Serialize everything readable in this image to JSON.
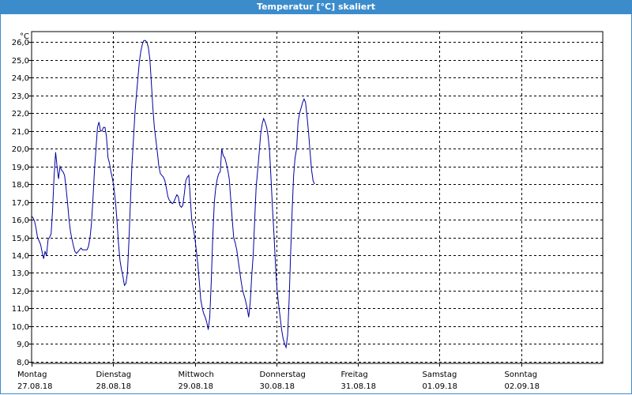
{
  "window": {
    "title": "Temperatur [°C] skaliert"
  },
  "chart_data": {
    "type": "line",
    "title": "Temperatur [°C] skaliert",
    "ylabel": "°C",
    "ylim": [
      7.9,
      26.6
    ],
    "yticks": [
      8.0,
      9.0,
      10.0,
      11.0,
      12.0,
      13.0,
      14.0,
      15.0,
      16.0,
      17.0,
      18.0,
      19.0,
      20.0,
      21.0,
      22.0,
      23.0,
      24.0,
      25.0,
      26.0
    ],
    "ytick_labels": [
      "8,0",
      "9,0",
      "10,0",
      "11,0",
      "12,0",
      "13,0",
      "14,0",
      "15,0",
      "16,0",
      "17,0",
      "18,0",
      "19,0",
      "20,0",
      "21,0",
      "22,0",
      "23,0",
      "24,0",
      "25,0",
      "26,0"
    ],
    "xlim": [
      0,
      7
    ],
    "days": [
      {
        "weekday": "Montag",
        "date": "27.08.18"
      },
      {
        "weekday": "Dienstag",
        "date": "28.08.18"
      },
      {
        "weekday": "Mittwoch",
        "date": "29.08.18"
      },
      {
        "weekday": "Donnerstag",
        "date": "30.08.18"
      },
      {
        "weekday": "Freitag",
        "date": "31.08.18"
      },
      {
        "weekday": "Samstag",
        "date": "01.09.18"
      },
      {
        "weekday": "Sonntag",
        "date": "02.09.18"
      }
    ],
    "grid": true,
    "series": [
      {
        "color": "#0000a0",
        "points": [
          [
            0.0,
            16.2
          ],
          [
            0.018,
            16.1
          ],
          [
            0.037,
            15.9
          ],
          [
            0.055,
            15.5
          ],
          [
            0.073,
            15.0
          ],
          [
            0.092,
            14.8
          ],
          [
            0.11,
            14.6
          ],
          [
            0.128,
            14.2
          ],
          [
            0.147,
            13.8
          ],
          [
            0.165,
            14.2
          ],
          [
            0.183,
            14.0
          ],
          [
            0.202,
            14.9
          ],
          [
            0.22,
            15.0
          ],
          [
            0.239,
            15.2
          ],
          [
            0.257,
            16.5
          ],
          [
            0.275,
            18.4
          ],
          [
            0.294,
            19.8
          ],
          [
            0.312,
            19.0
          ],
          [
            0.33,
            18.3
          ],
          [
            0.349,
            19.0
          ],
          [
            0.367,
            18.8
          ],
          [
            0.385,
            18.7
          ],
          [
            0.404,
            18.5
          ],
          [
            0.422,
            17.8
          ],
          [
            0.44,
            17.0
          ],
          [
            0.459,
            16.0
          ],
          [
            0.477,
            15.3
          ],
          [
            0.495,
            14.9
          ],
          [
            0.514,
            14.5
          ],
          [
            0.532,
            14.2
          ],
          [
            0.55,
            14.1
          ],
          [
            0.569,
            14.2
          ],
          [
            0.587,
            14.3
          ],
          [
            0.606,
            14.4
          ],
          [
            0.624,
            14.3
          ],
          [
            0.642,
            14.3
          ],
          [
            0.661,
            14.3
          ],
          [
            0.679,
            14.3
          ],
          [
            0.697,
            14.5
          ],
          [
            0.716,
            15.0
          ],
          [
            0.734,
            15.8
          ],
          [
            0.752,
            17.2
          ],
          [
            0.771,
            18.8
          ],
          [
            0.789,
            20.0
          ],
          [
            0.807,
            21.2
          ],
          [
            0.826,
            21.5
          ],
          [
            0.844,
            21.0
          ],
          [
            0.862,
            21.0
          ],
          [
            0.881,
            21.2
          ],
          [
            0.899,
            21.2
          ],
          [
            0.917,
            20.7
          ],
          [
            0.936,
            19.5
          ],
          [
            0.954,
            19.2
          ],
          [
            0.972,
            18.7
          ],
          [
            0.991,
            18.3
          ],
          [
            1.009,
            17.8
          ],
          [
            1.028,
            17.0
          ],
          [
            1.046,
            16.0
          ],
          [
            1.064,
            14.7
          ],
          [
            1.083,
            13.7
          ],
          [
            1.101,
            13.2
          ],
          [
            1.119,
            12.8
          ],
          [
            1.138,
            12.3
          ],
          [
            1.156,
            12.4
          ],
          [
            1.174,
            13.0
          ],
          [
            1.193,
            14.8
          ],
          [
            1.211,
            17.0
          ],
          [
            1.229,
            19.0
          ],
          [
            1.248,
            20.5
          ],
          [
            1.266,
            22.0
          ],
          [
            1.284,
            23.0
          ],
          [
            1.303,
            24.0
          ],
          [
            1.321,
            24.9
          ],
          [
            1.339,
            25.5
          ],
          [
            1.358,
            25.9
          ],
          [
            1.376,
            26.1
          ],
          [
            1.394,
            26.1
          ],
          [
            1.413,
            26.0
          ],
          [
            1.431,
            25.7
          ],
          [
            1.45,
            25.0
          ],
          [
            1.468,
            23.7
          ],
          [
            1.486,
            22.3
          ],
          [
            1.505,
            21.2
          ],
          [
            1.523,
            20.5
          ],
          [
            1.541,
            19.8
          ],
          [
            1.56,
            19.0
          ],
          [
            1.578,
            18.6
          ],
          [
            1.596,
            18.5
          ],
          [
            1.615,
            18.4
          ],
          [
            1.633,
            18.2
          ],
          [
            1.651,
            17.8
          ],
          [
            1.67,
            17.3
          ],
          [
            1.688,
            17.1
          ],
          [
            1.706,
            17.0
          ],
          [
            1.725,
            16.9
          ],
          [
            1.743,
            17.0
          ],
          [
            1.761,
            17.2
          ],
          [
            1.78,
            17.4
          ],
          [
            1.798,
            17.3
          ],
          [
            1.817,
            16.8
          ],
          [
            1.835,
            16.7
          ],
          [
            1.853,
            16.8
          ],
          [
            1.872,
            17.5
          ],
          [
            1.89,
            18.2
          ],
          [
            1.908,
            18.4
          ],
          [
            1.927,
            18.5
          ],
          [
            1.945,
            17.2
          ],
          [
            1.963,
            16.0
          ],
          [
            1.982,
            15.5
          ],
          [
            2.0,
            15.0
          ],
          [
            2.018,
            14.3
          ],
          [
            2.037,
            13.5
          ],
          [
            2.055,
            12.5
          ],
          [
            2.073,
            11.5
          ],
          [
            2.092,
            11.0
          ],
          [
            2.11,
            10.7
          ],
          [
            2.128,
            10.5
          ],
          [
            2.147,
            10.2
          ],
          [
            2.165,
            9.8
          ],
          [
            2.183,
            10.5
          ],
          [
            2.202,
            12.5
          ],
          [
            2.22,
            15.0
          ],
          [
            2.239,
            17.0
          ],
          [
            2.257,
            17.8
          ],
          [
            2.275,
            18.3
          ],
          [
            2.294,
            18.6
          ],
          [
            2.312,
            18.7
          ],
          [
            2.33,
            20.0
          ],
          [
            2.349,
            19.6
          ],
          [
            2.367,
            19.5
          ],
          [
            2.385,
            19.2
          ],
          [
            2.404,
            18.8
          ],
          [
            2.422,
            18.3
          ],
          [
            2.44,
            17.2
          ],
          [
            2.459,
            16.0
          ],
          [
            2.477,
            15.0
          ],
          [
            2.495,
            14.7
          ],
          [
            2.514,
            14.3
          ],
          [
            2.532,
            13.7
          ],
          [
            2.55,
            13.1
          ],
          [
            2.569,
            12.5
          ],
          [
            2.587,
            12.0
          ],
          [
            2.606,
            11.7
          ],
          [
            2.624,
            11.4
          ],
          [
            2.642,
            11.0
          ],
          [
            2.661,
            10.5
          ],
          [
            2.679,
            11.3
          ],
          [
            2.697,
            12.8
          ],
          [
            2.716,
            14.0
          ],
          [
            2.734,
            16.0
          ],
          [
            2.752,
            17.8
          ],
          [
            2.771,
            18.8
          ],
          [
            2.789,
            19.8
          ],
          [
            2.807,
            20.8
          ],
          [
            2.826,
            21.4
          ],
          [
            2.844,
            21.7
          ],
          [
            2.862,
            21.5
          ],
          [
            2.881,
            21.2
          ],
          [
            2.899,
            20.7
          ],
          [
            2.917,
            19.8
          ],
          [
            2.936,
            18.2
          ],
          [
            2.954,
            16.5
          ],
          [
            2.972,
            15.0
          ],
          [
            2.991,
            13.3
          ],
          [
            3.009,
            12.0
          ],
          [
            3.028,
            11.2
          ],
          [
            3.046,
            10.5
          ],
          [
            3.064,
            9.8
          ],
          [
            3.083,
            9.3
          ],
          [
            3.101,
            9.0
          ],
          [
            3.119,
            8.8
          ],
          [
            3.138,
            9.5
          ],
          [
            3.156,
            11.5
          ],
          [
            3.174,
            14.0
          ],
          [
            3.193,
            16.5
          ],
          [
            3.211,
            18.5
          ],
          [
            3.229,
            19.5
          ],
          [
            3.248,
            20.0
          ],
          [
            3.266,
            21.5
          ],
          [
            3.284,
            22.0
          ],
          [
            3.303,
            22.3
          ],
          [
            3.321,
            22.6
          ],
          [
            3.339,
            22.8
          ],
          [
            3.358,
            22.6
          ],
          [
            3.376,
            21.8
          ],
          [
            3.394,
            20.9
          ],
          [
            3.413,
            19.8
          ],
          [
            3.431,
            18.8
          ],
          [
            3.45,
            18.2
          ],
          [
            3.468,
            18.0
          ]
        ]
      }
    ]
  }
}
